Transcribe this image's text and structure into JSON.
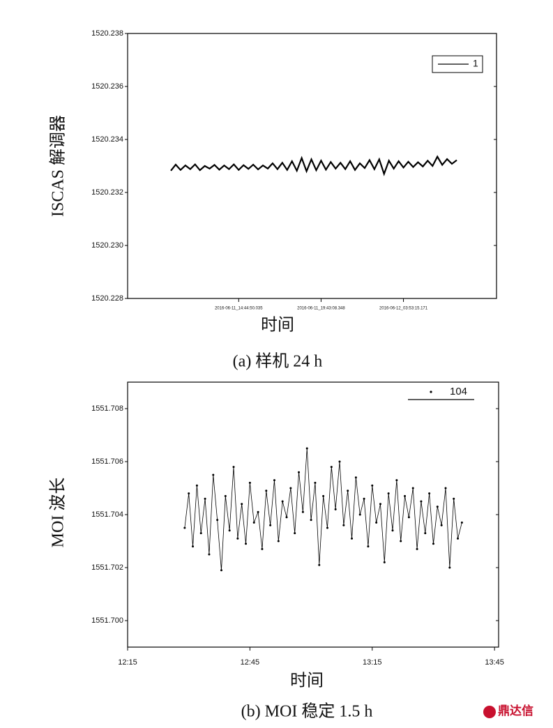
{
  "chart_data": [
    {
      "type": "line",
      "caption": "(a) 样机 24 h",
      "x_label": "时间",
      "y_label": "ISCAS 解调器",
      "categories": [
        null,
        null,
        null,
        null,
        null,
        null,
        null,
        null,
        null,
        null,
        null,
        null,
        null,
        null,
        "2016-06-11_14:44:50.035",
        null,
        null,
        null,
        null,
        null,
        null,
        null,
        null,
        null,
        null,
        null,
        null,
        null,
        null,
        null,
        null,
        "2016-06-11_19:43:08.348",
        null,
        null,
        null,
        null,
        null,
        null,
        null,
        null,
        null,
        null,
        null,
        null,
        null,
        null,
        null,
        null,
        "2016-06-12_03:53:15.171",
        null,
        null,
        null,
        null,
        null,
        null,
        null,
        null,
        null,
        null,
        null
      ],
      "series": [
        {
          "name": "1",
          "color": "#000000",
          "values": [
            1520.23282,
            1520.23305,
            1520.23285,
            1520.23302,
            1520.23288,
            1520.23306,
            1520.23284,
            1520.233,
            1520.2329,
            1520.23304,
            1520.23286,
            1520.23302,
            1520.23288,
            1520.23306,
            1520.23285,
            1520.23303,
            1520.23289,
            1520.23305,
            1520.23287,
            1520.23302,
            1520.2329,
            1520.2331,
            1520.23288,
            1520.23312,
            1520.23285,
            1520.23318,
            1520.23282,
            1520.2333,
            1520.2328,
            1520.23325,
            1520.23284,
            1520.2332,
            1520.23286,
            1520.23315,
            1520.2329,
            1520.23312,
            1520.23288,
            1520.23318,
            1520.23285,
            1520.2331,
            1520.23292,
            1520.23322,
            1520.23288,
            1520.23325,
            1520.2327,
            1520.2332,
            1520.2329,
            1520.23318,
            1520.23294,
            1520.23316,
            1520.23296,
            1520.23314,
            1520.23298,
            1520.2332,
            1520.233,
            1520.23335,
            1520.23304,
            1520.23326,
            1520.23308,
            1520.23322
          ]
        }
      ],
      "ylim": [
        1520.228,
        1520.238
      ],
      "yticks": [
        1520.228,
        {
          "value": 1520.23,
          "label": "1520.230"
        },
        1520.232,
        1520.234,
        1520.236,
        1520.238
      ],
      "legend": "upper right",
      "markers": false
    },
    {
      "type": "line",
      "caption": "(b) MOI 稳定 1.5 h",
      "x_label": "时间",
      "y_label": "MOI 波长",
      "x": [
        "12:29",
        "12:30",
        "12:31",
        "12:32",
        "12:33",
        "12:34",
        "12:35",
        "12:36",
        "12:37",
        "12:38",
        "12:39",
        "12:40",
        "12:41",
        "12:42",
        "12:43",
        "12:44",
        "12:45",
        "12:46",
        "12:47",
        "12:48",
        "12:49",
        "12:50",
        "12:51",
        "12:52",
        "12:53",
        "12:54",
        "12:55",
        "12:56",
        "12:57",
        "12:58",
        "12:59",
        "13:00",
        "13:01",
        "13:02",
        "13:03",
        "13:04",
        "13:05",
        "13:06",
        "13:07",
        "13:08",
        "13:09",
        "13:10",
        "13:11",
        "13:12",
        "13:13",
        "13:14",
        "13:15",
        "13:16",
        "13:17",
        "13:18",
        "13:19",
        "13:20",
        "13:21",
        "13:22",
        "13:23",
        "13:24",
        "13:25",
        "13:26",
        "13:27",
        "13:28",
        "13:29",
        "13:30",
        "13:31",
        "13:32",
        "13:33",
        "13:34",
        "13:35",
        "13:36",
        "13:37"
      ],
      "series": [
        {
          "name": "104",
          "color": "#000000",
          "values": [
            1551.7035,
            1551.7048,
            1551.7028,
            1551.7051,
            1551.7033,
            1551.7046,
            1551.7025,
            1551.7055,
            1551.7038,
            1551.7019,
            1551.7047,
            1551.7034,
            1551.7058,
            1551.7031,
            1551.7044,
            1551.7029,
            1551.7052,
            1551.7037,
            1551.7041,
            1551.7027,
            1551.7049,
            1551.7036,
            1551.7053,
            1551.703,
            1551.7045,
            1551.7039,
            1551.705,
            1551.7033,
            1551.7056,
            1551.7041,
            1551.7065,
            1551.7038,
            1551.7052,
            1551.7021,
            1551.7047,
            1551.7035,
            1551.7058,
            1551.7042,
            1551.706,
            1551.7036,
            1551.7049,
            1551.7031,
            1551.7054,
            1551.704,
            1551.7046,
            1551.7028,
            1551.7051,
            1551.7037,
            1551.7044,
            1551.7022,
            1551.7048,
            1551.7034,
            1551.7053,
            1551.703,
            1551.7047,
            1551.7039,
            1551.705,
            1551.7027,
            1551.7045,
            1551.7033,
            1551.7048,
            1551.7029,
            1551.7043,
            1551.7036,
            1551.705,
            1551.702,
            1551.7046,
            1551.7031,
            1551.7037
          ]
        }
      ],
      "xlim": [
        "12:15",
        "13:46"
      ],
      "xticks": [
        "12:15",
        "12:45",
        "13:15",
        "13:45"
      ],
      "ylim": [
        1551.699,
        1551.709
      ],
      "yticks": [
        {
          "value": 1551.7,
          "label": "1551.700"
        },
        1551.702,
        1551.704,
        1551.706,
        1551.708
      ],
      "legend": "upper right",
      "markers": true
    }
  ],
  "watermark": "鼎达信"
}
